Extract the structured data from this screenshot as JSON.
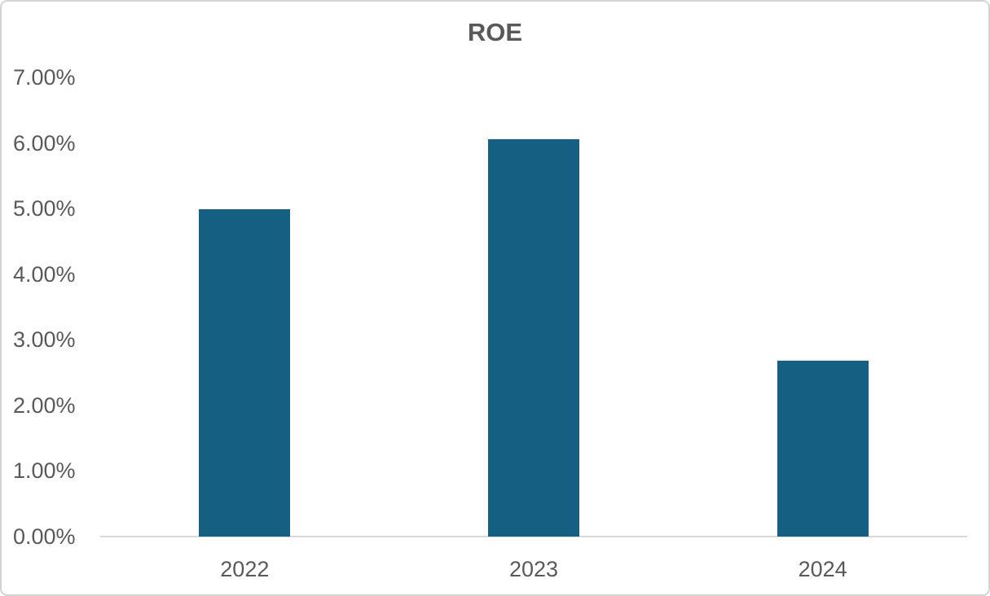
{
  "chart_data": {
    "type": "bar",
    "title": "ROE",
    "categories": [
      "2022",
      "2023",
      "2024"
    ],
    "series": [
      {
        "name": "ROE",
        "values_percent": [
          4.99,
          6.06,
          2.68
        ]
      }
    ],
    "xlabel": "",
    "ylabel": "",
    "y_axis": {
      "min_percent": 0,
      "max_percent": 7,
      "tick_interval_percent": 1,
      "tick_labels": [
        "0.00%",
        "1.00%",
        "2.00%",
        "3.00%",
        "4.00%",
        "5.00%",
        "6.00%",
        "7.00%"
      ]
    },
    "grid": false,
    "legend_position": "none",
    "colors": {
      "bar_fill": "#156082",
      "axis_line": "#d9d9d9",
      "tick_label": "#595959",
      "title": "#595959",
      "background": "#ffffff",
      "frame_border": "#d6d3d3"
    }
  }
}
